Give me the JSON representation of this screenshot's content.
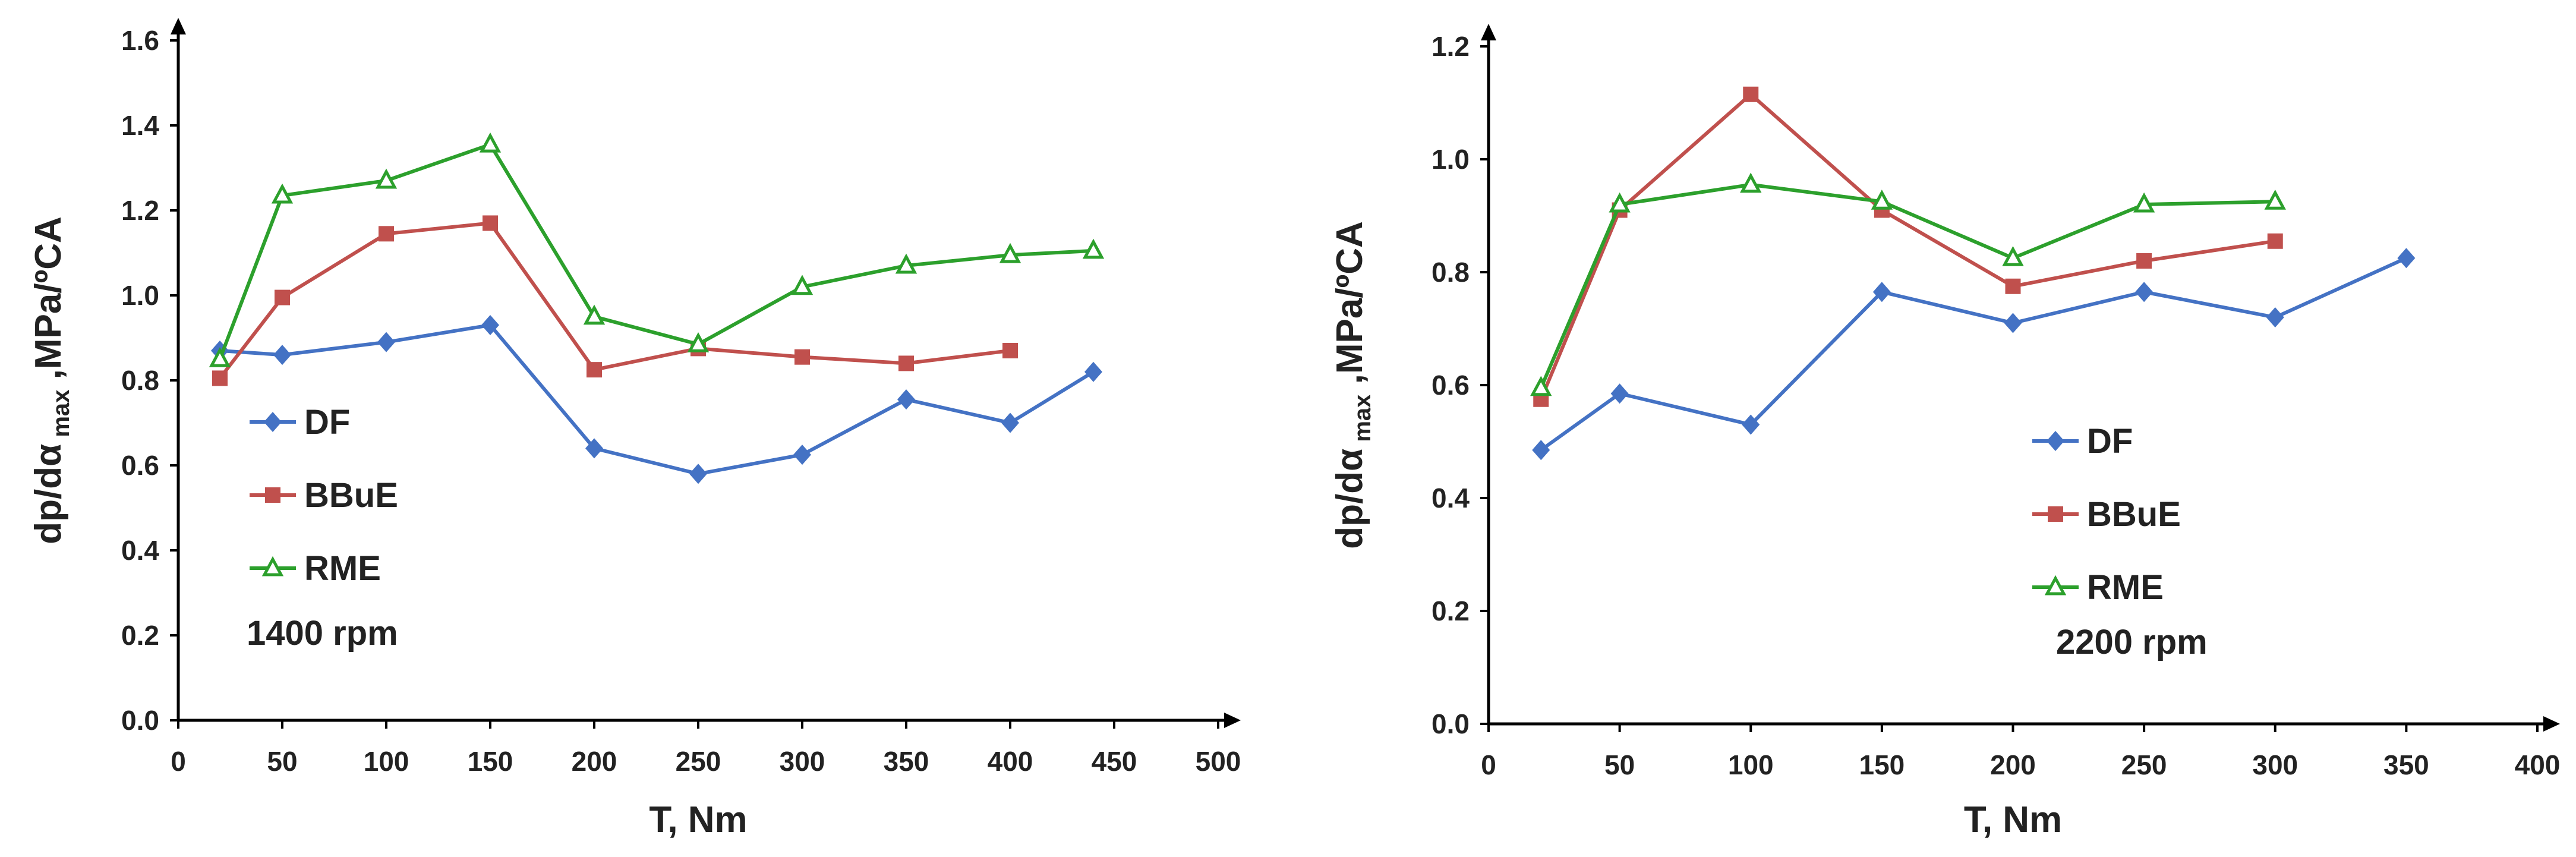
{
  "chart_data": [
    {
      "type": "line",
      "xlabel": "T, Nm",
      "ylabel": "dp/dα max ,MPa/ºCA",
      "ylabel_parts": {
        "main": "dp/dα",
        "sub": "max",
        "rest": " ,MPa/ºCA"
      },
      "xlim": [
        0,
        500
      ],
      "ylim": [
        0,
        1.6
      ],
      "xticks": [
        "0",
        "50",
        "100",
        "150",
        "200",
        "250",
        "300",
        "350",
        "400",
        "450",
        "500"
      ],
      "yticks": [
        "0.0",
        "0.2",
        "0.4",
        "0.6",
        "0.8",
        "1.0",
        "1.2",
        "1.4",
        "1.6"
      ],
      "annotation": "1400 rpm",
      "series": [
        {
          "name": "DF",
          "color": "#4472C4",
          "marker": "diamond",
          "x": [
            20,
            50,
            100,
            150,
            200,
            250,
            300,
            350,
            400,
            440
          ],
          "y": [
            0.87,
            0.86,
            0.89,
            0.93,
            0.64,
            0.58,
            0.625,
            0.755,
            0.7,
            0.82
          ]
        },
        {
          "name": "BBuE",
          "color": "#C0504D",
          "marker": "square",
          "x": [
            20,
            50,
            100,
            150,
            200,
            250,
            300,
            350,
            400
          ],
          "y": [
            0.805,
            0.995,
            1.145,
            1.17,
            0.825,
            0.875,
            0.855,
            0.84,
            0.87
          ]
        },
        {
          "name": "RME",
          "color": "#2CA02C",
          "marker": "triangle",
          "x": [
            20,
            50,
            100,
            150,
            200,
            250,
            300,
            350,
            400,
            440
          ],
          "y": [
            0.85,
            1.235,
            1.27,
            1.355,
            0.95,
            0.885,
            1.02,
            1.07,
            1.095,
            1.105
          ]
        }
      ]
    },
    {
      "type": "line",
      "xlabel": "T, Nm",
      "ylabel": "dp/dα max ,MPa/ºCA",
      "ylabel_parts": {
        "main": "dp/dα",
        "sub": "max",
        "rest": " ,MPa/ºCA"
      },
      "xlim": [
        0,
        400
      ],
      "ylim": [
        0,
        1.2
      ],
      "xticks": [
        "0",
        "50",
        "100",
        "150",
        "200",
        "250",
        "300",
        "350",
        "400"
      ],
      "yticks": [
        "0.0",
        "0.2",
        "0.4",
        "0.6",
        "0.8",
        "1.0",
        "1.2"
      ],
      "annotation": "2200 rpm",
      "series": [
        {
          "name": "DF",
          "color": "#4472C4",
          "marker": "diamond",
          "x": [
            20,
            50,
            100,
            150,
            200,
            250,
            300,
            350
          ],
          "y": [
            0.485,
            0.585,
            0.53,
            0.765,
            0.71,
            0.765,
            0.72,
            0.825
          ]
        },
        {
          "name": "BBuE",
          "color": "#C0504D",
          "marker": "square",
          "x": [
            20,
            50,
            100,
            150,
            200,
            250,
            300
          ],
          "y": [
            0.575,
            0.91,
            1.115,
            0.91,
            0.775,
            0.82,
            0.855
          ]
        },
        {
          "name": "RME",
          "color": "#2CA02C",
          "marker": "triangle",
          "x": [
            20,
            50,
            100,
            150,
            200,
            250,
            300
          ],
          "y": [
            0.595,
            0.92,
            0.955,
            0.925,
            0.825,
            0.92,
            0.925
          ]
        }
      ]
    }
  ]
}
